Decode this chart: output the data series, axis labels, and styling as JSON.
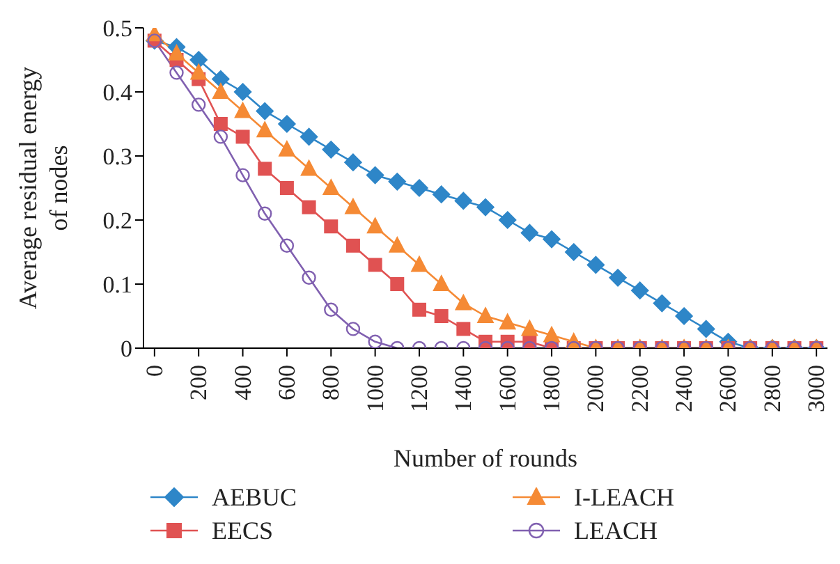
{
  "chart_data": {
    "type": "line",
    "xlabel": "Number of rounds",
    "ylabel": "Average residual energy of nodes",
    "x": [
      0,
      100,
      200,
      300,
      400,
      500,
      600,
      700,
      800,
      900,
      1000,
      1100,
      1200,
      1300,
      1400,
      1500,
      1600,
      1700,
      1800,
      1900,
      2000,
      2100,
      2200,
      2300,
      2400,
      2500,
      2600,
      2700,
      2800,
      2900,
      3000
    ],
    "series": [
      {
        "name": "AEBUC",
        "color": "#2e86c8",
        "marker": "diamond",
        "values": [
          0.48,
          0.47,
          0.45,
          0.42,
          0.4,
          0.37,
          0.35,
          0.33,
          0.31,
          0.29,
          0.27,
          0.26,
          0.25,
          0.24,
          0.23,
          0.22,
          0.2,
          0.18,
          0.17,
          0.15,
          0.13,
          0.11,
          0.09,
          0.07,
          0.05,
          0.03,
          0.01,
          0,
          0,
          0,
          0
        ]
      },
      {
        "name": "EECS",
        "color": "#e05252",
        "marker": "square",
        "values": [
          0.48,
          0.45,
          0.42,
          0.35,
          0.33,
          0.28,
          0.25,
          0.22,
          0.19,
          0.16,
          0.13,
          0.1,
          0.06,
          0.05,
          0.03,
          0.01,
          0.01,
          0.01,
          0,
          0,
          0,
          0,
          0,
          0,
          0,
          0,
          0,
          0,
          0,
          0,
          0
        ]
      },
      {
        "name": "I-LEACH",
        "color": "#f58a35",
        "marker": "triangle",
        "values": [
          0.49,
          0.46,
          0.43,
          0.4,
          0.37,
          0.34,
          0.31,
          0.28,
          0.25,
          0.22,
          0.19,
          0.16,
          0.13,
          0.1,
          0.07,
          0.05,
          0.04,
          0.03,
          0.02,
          0.01,
          0,
          0,
          0,
          0,
          0,
          0,
          0,
          0,
          0,
          0,
          0
        ]
      },
      {
        "name": "LEACH",
        "color": "#8060b0",
        "marker": "circle",
        "values": [
          0.48,
          0.43,
          0.38,
          0.33,
          0.27,
          0.21,
          0.16,
          0.11,
          0.06,
          0.03,
          0.01,
          0,
          0,
          0,
          0,
          0,
          0,
          0,
          0,
          0,
          0,
          0,
          0,
          0,
          0,
          0,
          0,
          0,
          0,
          0,
          0
        ]
      }
    ],
    "xlim": [
      -50,
      3050
    ],
    "xticks": [
      0,
      200,
      400,
      600,
      800,
      1000,
      1200,
      1400,
      1600,
      1800,
      2000,
      2200,
      2400,
      2600,
      2800,
      3000
    ],
    "ylim": [
      0,
      0.5
    ],
    "yticks": [
      0,
      0.1,
      0.2,
      0.3,
      0.4,
      0.5
    ],
    "grid": false,
    "legend": "bottom"
  }
}
